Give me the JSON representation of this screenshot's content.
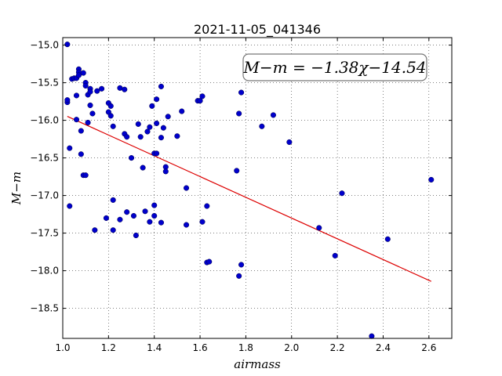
{
  "chart_data": {
    "type": "scatter",
    "title": "2021-11-05_041346",
    "xlabel": "airmass",
    "ylabel": "M−m",
    "xlim": [
      1.0,
      2.7
    ],
    "ylim": [
      -18.9,
      -14.9
    ],
    "y_inverted": true,
    "grid": true,
    "x_ticks": [
      1.0,
      1.2,
      1.4,
      1.6,
      1.8,
      2.0,
      2.2,
      2.4,
      2.6
    ],
    "x_tick_labels": [
      "1.0",
      "1.2",
      "1.4",
      "1.6",
      "1.8",
      "2.0",
      "2.2",
      "2.4",
      "2.6"
    ],
    "y_ticks": [
      -15.0,
      -15.5,
      -16.0,
      -16.5,
      -17.0,
      -17.5,
      -18.0,
      -18.5
    ],
    "y_tick_labels": [
      "−15.0",
      "−15.5",
      "−16.0",
      "−16.5",
      "−17.0",
      "−17.5",
      "−18.0",
      "−18.5"
    ],
    "annotation": "M−m = −1.38χ−14.54",
    "colors": {
      "points": "#0000cc",
      "fit": "#dd0000"
    },
    "fit_line": {
      "slope": -1.38,
      "intercept": -14.54,
      "x_range": [
        1.02,
        2.61
      ]
    },
    "points": [
      {
        "x": 1.02,
        "y": -14.99
      },
      {
        "x": 1.02,
        "y": -15.76
      },
      {
        "x": 1.02,
        "y": -15.73
      },
      {
        "x": 1.03,
        "y": -16.37
      },
      {
        "x": 1.03,
        "y": -17.14
      },
      {
        "x": 1.04,
        "y": -15.45
      },
      {
        "x": 1.05,
        "y": -15.44
      },
      {
        "x": 1.06,
        "y": -15.67
      },
      {
        "x": 1.06,
        "y": -15.99
      },
      {
        "x": 1.06,
        "y": -15.44
      },
      {
        "x": 1.07,
        "y": -15.32
      },
      {
        "x": 1.07,
        "y": -15.36
      },
      {
        "x": 1.07,
        "y": -15.4
      },
      {
        "x": 1.08,
        "y": -16.14
      },
      {
        "x": 1.08,
        "y": -16.45
      },
      {
        "x": 1.09,
        "y": -15.37
      },
      {
        "x": 1.09,
        "y": -16.73
      },
      {
        "x": 1.1,
        "y": -16.73
      },
      {
        "x": 1.1,
        "y": -15.5
      },
      {
        "x": 1.1,
        "y": -15.54
      },
      {
        "x": 1.11,
        "y": -15.66
      },
      {
        "x": 1.11,
        "y": -16.03
      },
      {
        "x": 1.12,
        "y": -15.58
      },
      {
        "x": 1.12,
        "y": -15.62
      },
      {
        "x": 1.12,
        "y": -15.8
      },
      {
        "x": 1.13,
        "y": -15.91
      },
      {
        "x": 1.14,
        "y": -17.46
      },
      {
        "x": 1.15,
        "y": -15.61
      },
      {
        "x": 1.17,
        "y": -15.58
      },
      {
        "x": 1.19,
        "y": -17.3
      },
      {
        "x": 1.2,
        "y": -15.77
      },
      {
        "x": 1.2,
        "y": -15.89
      },
      {
        "x": 1.21,
        "y": -15.81
      },
      {
        "x": 1.21,
        "y": -15.94
      },
      {
        "x": 1.22,
        "y": -16.08
      },
      {
        "x": 1.22,
        "y": -17.06
      },
      {
        "x": 1.22,
        "y": -17.46
      },
      {
        "x": 1.25,
        "y": -15.57
      },
      {
        "x": 1.25,
        "y": -17.32
      },
      {
        "x": 1.27,
        "y": -15.59
      },
      {
        "x": 1.27,
        "y": -16.18
      },
      {
        "x": 1.28,
        "y": -16.22
      },
      {
        "x": 1.28,
        "y": -17.22
      },
      {
        "x": 1.3,
        "y": -16.5
      },
      {
        "x": 1.31,
        "y": -17.27
      },
      {
        "x": 1.32,
        "y": -17.53
      },
      {
        "x": 1.33,
        "y": -16.05
      },
      {
        "x": 1.34,
        "y": -16.22
      },
      {
        "x": 1.35,
        "y": -16.63
      },
      {
        "x": 1.36,
        "y": -17.21
      },
      {
        "x": 1.37,
        "y": -16.15
      },
      {
        "x": 1.38,
        "y": -16.09
      },
      {
        "x": 1.38,
        "y": -17.35
      },
      {
        "x": 1.39,
        "y": -15.81
      },
      {
        "x": 1.4,
        "y": -16.44
      },
      {
        "x": 1.4,
        "y": -17.13
      },
      {
        "x": 1.4,
        "y": -17.27
      },
      {
        "x": 1.41,
        "y": -15.72
      },
      {
        "x": 1.41,
        "y": -16.04
      },
      {
        "x": 1.41,
        "y": -16.44
      },
      {
        "x": 1.43,
        "y": -15.55
      },
      {
        "x": 1.43,
        "y": -16.23
      },
      {
        "x": 1.43,
        "y": -17.36
      },
      {
        "x": 1.44,
        "y": -16.1
      },
      {
        "x": 1.45,
        "y": -16.62
      },
      {
        "x": 1.45,
        "y": -16.68
      },
      {
        "x": 1.46,
        "y": -15.95
      },
      {
        "x": 1.5,
        "y": -16.21
      },
      {
        "x": 1.52,
        "y": -15.88
      },
      {
        "x": 1.54,
        "y": -16.9
      },
      {
        "x": 1.54,
        "y": -17.39
      },
      {
        "x": 1.59,
        "y": -15.74
      },
      {
        "x": 1.6,
        "y": -15.74
      },
      {
        "x": 1.61,
        "y": -15.68
      },
      {
        "x": 1.61,
        "y": -17.35
      },
      {
        "x": 1.63,
        "y": -17.14
      },
      {
        "x": 1.63,
        "y": -17.89
      },
      {
        "x": 1.64,
        "y": -17.88
      },
      {
        "x": 1.76,
        "y": -16.67
      },
      {
        "x": 1.77,
        "y": -15.91
      },
      {
        "x": 1.77,
        "y": -18.07
      },
      {
        "x": 1.78,
        "y": -17.92
      },
      {
        "x": 1.78,
        "y": -15.63
      },
      {
        "x": 1.87,
        "y": -16.08
      },
      {
        "x": 1.92,
        "y": -15.93
      },
      {
        "x": 1.99,
        "y": -16.29
      },
      {
        "x": 2.12,
        "y": -17.43
      },
      {
        "x": 2.19,
        "y": -17.8
      },
      {
        "x": 2.22,
        "y": -16.97
      },
      {
        "x": 2.35,
        "y": -18.87
      },
      {
        "x": 2.42,
        "y": -17.58
      },
      {
        "x": 2.61,
        "y": -16.79
      }
    ]
  }
}
